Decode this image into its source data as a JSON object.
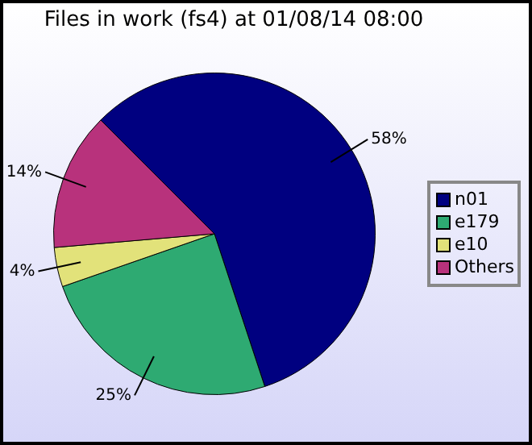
{
  "chart_data": {
    "type": "pie",
    "title": "Files in work (fs4) at 01/08/14 08:00",
    "categories": [
      "n01",
      "e179",
      "e10",
      "Others"
    ],
    "values": [
      58,
      25,
      4,
      14
    ],
    "colors": [
      "#000080",
      "#2eaa72",
      "#e2e27a",
      "#b8327c"
    ],
    "value_labels": [
      "58%",
      "25%",
      "4%",
      "14%"
    ],
    "legend": "right"
  }
}
